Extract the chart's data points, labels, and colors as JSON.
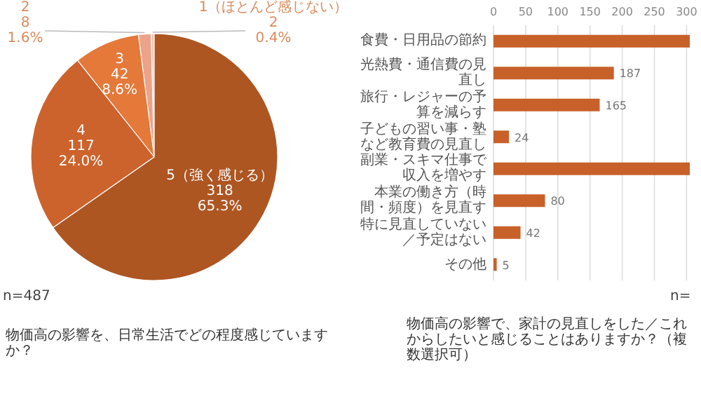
{
  "chart_data": [
    {
      "type": "pie",
      "title": "物価高の影響を、日常生活でどの程度感じていますか？",
      "categories": [
        "1（ほとんど感じない）",
        "2",
        "3",
        "4",
        "5（強く感じる）"
      ],
      "values": [
        2,
        8,
        42,
        117,
        318
      ],
      "colors": [
        "#f2c4b0",
        "#eba389",
        "#e4793a",
        "#cc632c",
        "#ad5622"
      ],
      "value_labels": [
        "2\n0.4%",
        "8\n1.6%",
        "42\n8.6%",
        "117\n24.0%",
        "318\n65.3%"
      ],
      "annotations": [
        "n=487"
      ]
    },
    {
      "type": "bar",
      "orientation": "horizontal",
      "title": "物価高の影響で、家計の見直しをした／これからしたいと感じることはありますか？（複数選択可）",
      "categories": [
        "食費・日用品の節約",
        "光熱費・通信費の見直し",
        "旅行・レジャーの予算を減らす",
        "子どもの習い事・塾など教育費の見直し",
        "副業・スキマ仕事で収入を増やす",
        "本業の働き方（時間・頻度）を見直す",
        "特に見直していない／予定はない",
        "その他"
      ],
      "values": [
        305,
        187,
        165,
        24,
        305,
        80,
        42,
        5
      ],
      "color": "#c8602a",
      "xlim": [
        0,
        305
      ],
      "xticks": [
        0,
        50,
        100,
        150,
        200,
        250,
        300
      ],
      "grid": "x",
      "value_labels": [
        null,
        "187",
        "165",
        "24",
        null,
        "80",
        "42",
        "5"
      ],
      "annotations": [
        "n="
      ]
    }
  ]
}
